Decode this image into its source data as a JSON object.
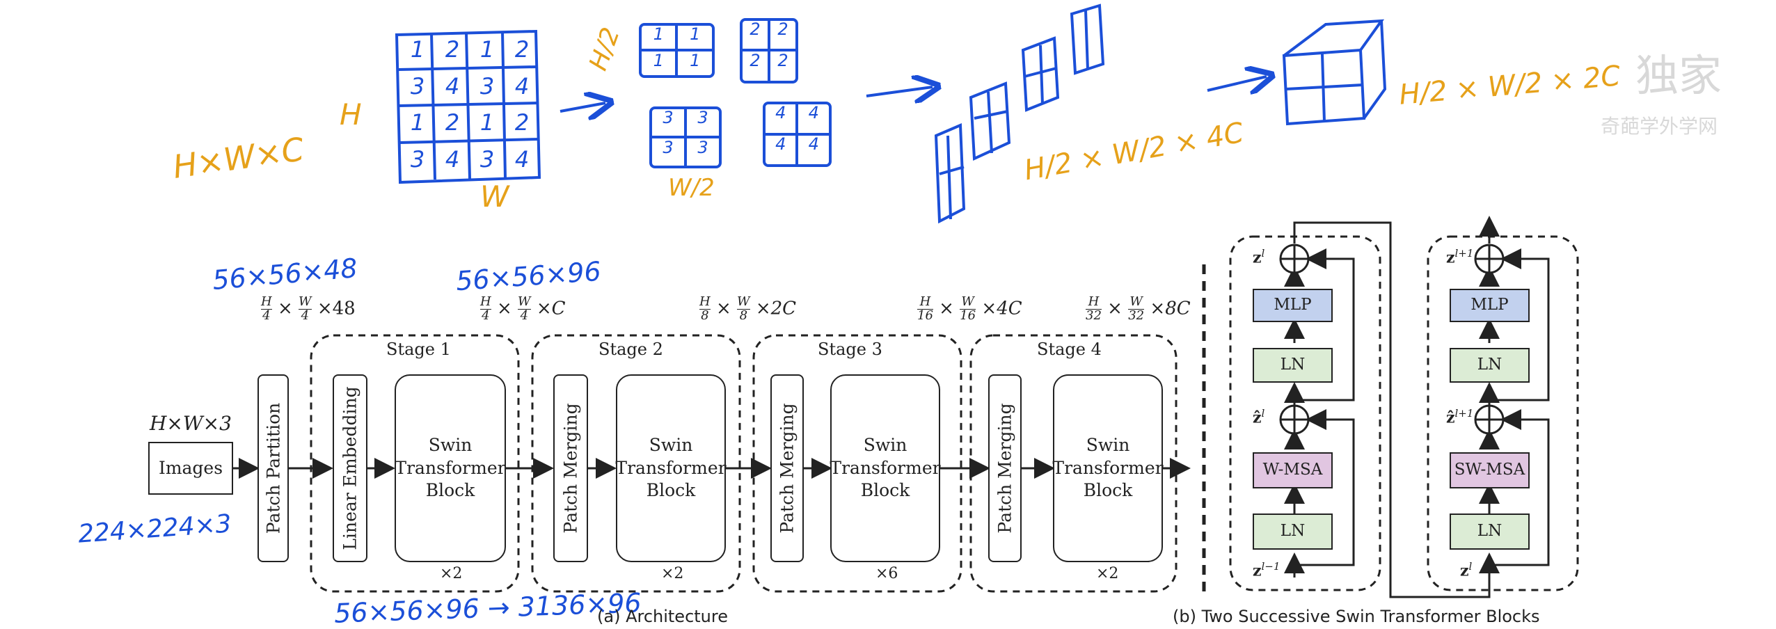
{
  "handwriting": {
    "hwc": "H×W×C",
    "h_label": "H",
    "w_label": "W",
    "grid": [
      "1",
      "2",
      "1",
      "2",
      "3",
      "4",
      "3",
      "4",
      "1",
      "2",
      "1",
      "2",
      "3",
      "4",
      "3",
      "4"
    ],
    "h_half": "H/2",
    "w_half": "W/2",
    "patch_1": [
      "1",
      "1",
      "1",
      "1"
    ],
    "patch_2": [
      "2",
      "2",
      "2",
      "2"
    ],
    "patch_3": [
      "3",
      "3",
      "3",
      "3"
    ],
    "patch_4": [
      "4",
      "4",
      "4",
      "4"
    ],
    "stack_dims": "H/2 × W/2 × 4C",
    "merged_dims": "H/2 × W/2 × 2C",
    "input_dims": "224×224×3",
    "dims_1": "56×56×48",
    "dims_2": "56×56×96",
    "bottom_note": "56×56×96 → 3136×96"
  },
  "architecture": {
    "input_shape": "H×W×3",
    "images": "Images",
    "patch_partition": "Patch Partition",
    "linear_embedding": "Linear Embedding",
    "patch_merging": "Patch Merging",
    "swin_block_line1": "Swin",
    "swin_block_line2": "Transformer",
    "swin_block_line3": "Block",
    "stages": [
      {
        "name": "Stage 1",
        "repeat": "×2"
      },
      {
        "name": "Stage 2",
        "repeat": "×2"
      },
      {
        "name": "Stage 3",
        "repeat": "×6"
      },
      {
        "name": "Stage 4",
        "repeat": "×2"
      }
    ],
    "dims": [
      {
        "a": "H",
        "b": "4",
        "c": "W",
        "d": "4",
        "tail": "×48"
      },
      {
        "a": "H",
        "b": "4",
        "c": "W",
        "d": "4",
        "tail": "×C"
      },
      {
        "a": "H",
        "b": "8",
        "c": "W",
        "d": "8",
        "tail": "×2C"
      },
      {
        "a": "H",
        "b": "16",
        "c": "W",
        "d": "16",
        "tail": "×4C"
      },
      {
        "a": "H",
        "b": "32",
        "c": "W",
        "d": "32",
        "tail": "×8C"
      }
    ],
    "caption": "(a) Architecture"
  },
  "blocks": {
    "mlp": "MLP",
    "ln": "LN",
    "w_msa": "W-MSA",
    "sw_msa": "SW-MSA",
    "z_l": "z",
    "sup_l": "l",
    "sup_l1": "l+1",
    "sup_lm1": "l−1",
    "caption": "(b) Two Successive Swin Transformer Blocks"
  },
  "watermark": {
    "brand": "独家",
    "sub": "奇葩学外学网"
  },
  "colors": {
    "ink_blue": "#1b4fd8",
    "ink_gold": "#e6a11a",
    "msa_fill": "#e1c6e1",
    "mlp_fill": "#c2d1ee",
    "ln_fill": "#dcecd5"
  }
}
